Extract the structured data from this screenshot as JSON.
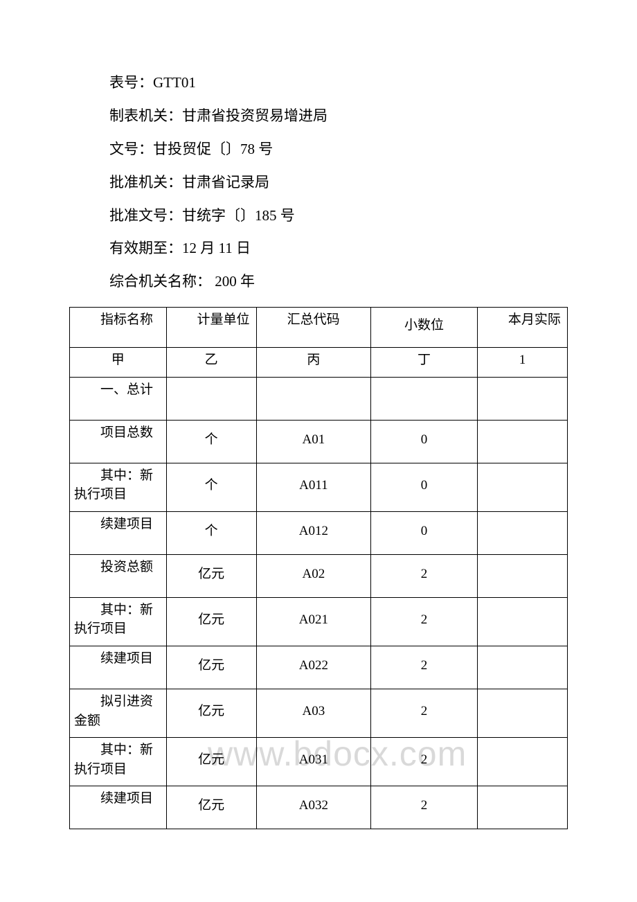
{
  "meta": {
    "form_no_label": "表号：",
    "form_no": "GTT01",
    "maker_label": "制表机关：",
    "maker": "甘肃省投资贸易增进局",
    "doc_no_label": "文号：",
    "doc_no": "甘投贸促〔〕78 号",
    "approver_label": "批准机关：",
    "approver": "甘肃省记录局",
    "approval_no_label": "批准文号：",
    "approval_no": "甘统字〔〕185 号",
    "valid_until_label": "有效期至：",
    "valid_until": "12 月 11 日",
    "org_name_label": "综合机关名称：",
    "org_name": " 200 年"
  },
  "watermark": "www.bdocx.com",
  "table": {
    "columns": [
      "指标名称",
      "计量单位",
      "汇总代码",
      "小数位",
      "本月实际"
    ],
    "subheader": [
      "甲",
      "乙",
      "丙",
      "丁",
      "1"
    ],
    "rows": [
      {
        "name": "一、总计",
        "unit": "",
        "code": "",
        "dec": "",
        "val": ""
      },
      {
        "name": "项目总数",
        "unit": "个",
        "code": "A01",
        "dec": "0",
        "val": ""
      },
      {
        "name": "其中：新执行项目",
        "unit": "个",
        "code": "A011",
        "dec": "0",
        "val": ""
      },
      {
        "name": "续建项目",
        "unit": "个",
        "code": "A012",
        "dec": "0",
        "val": ""
      },
      {
        "name": "投资总额",
        "unit": "亿元",
        "code": "A02",
        "dec": "2",
        "val": ""
      },
      {
        "name": "其中：新执行项目",
        "unit": "亿元",
        "code": "A021",
        "dec": "2",
        "val": ""
      },
      {
        "name": "续建项目",
        "unit": "亿元",
        "code": "A022",
        "dec": "2",
        "val": ""
      },
      {
        "name": "拟引进资金额",
        "unit": "亿元",
        "code": "A03",
        "dec": "2",
        "val": ""
      },
      {
        "name": "其中：新执行项目",
        "unit": "亿元",
        "code": "A031",
        "dec": "2",
        "val": ""
      },
      {
        "name": "续建项目",
        "unit": "亿元",
        "code": "A032",
        "dec": "2",
        "val": ""
      }
    ],
    "border_color": "#000000",
    "bg_color": "#ffffff",
    "font_size_pt": 14
  }
}
